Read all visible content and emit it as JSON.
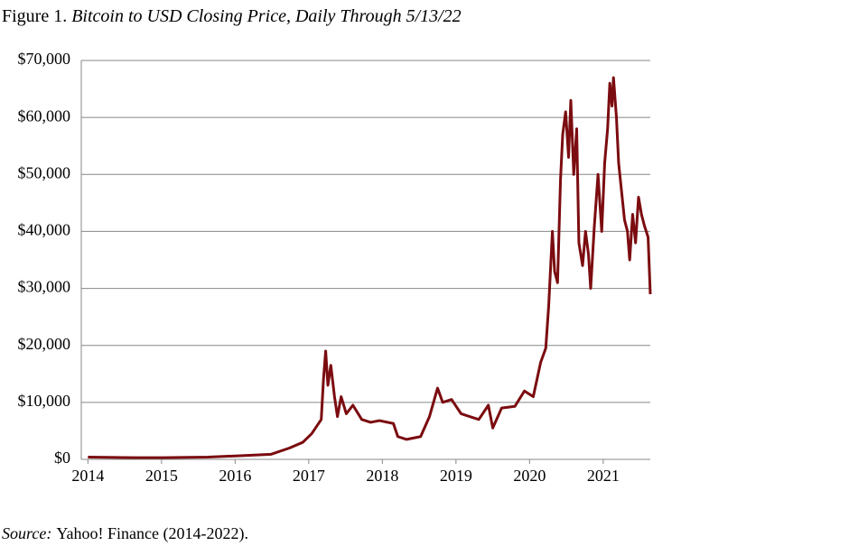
{
  "chart_data": {
    "type": "line",
    "figure_label": "Figure 1.",
    "title": "Bitcoin to USD Closing Price, Daily Through 5/13/22",
    "source_label": "Source:",
    "source": "Yahoo! Finance (2014-2022).",
    "xlim": [
      2013.91,
      2021.64
    ],
    "xticks": [
      2014,
      2015,
      2016,
      2017,
      2018,
      2019,
      2020,
      2021
    ],
    "ylim": [
      0,
      70000
    ],
    "yticks": [
      {
        "value": 0,
        "label": "$0"
      },
      {
        "value": 10000,
        "label": "$10,000"
      },
      {
        "value": 20000,
        "label": "$20,000"
      },
      {
        "value": 30000,
        "label": "$30,000"
      },
      {
        "value": 40000,
        "label": "$40,000"
      },
      {
        "value": 50000,
        "label": "$50,000"
      },
      {
        "value": 60000,
        "label": "$60,000"
      },
      {
        "value": 70000,
        "label": "$70,000"
      }
    ],
    "grid": true,
    "x": [
      2014.0,
      2014.65,
      2015.0,
      2015.63,
      2016.0,
      2016.49,
      2016.74,
      2016.92,
      2017.04,
      2017.17,
      2017.2,
      2017.23,
      2017.26,
      2017.3,
      2017.35,
      2017.39,
      2017.44,
      2017.51,
      2017.6,
      2017.72,
      2017.84,
      2017.96,
      2018.15,
      2018.21,
      2018.33,
      2018.52,
      2018.64,
      2018.75,
      2018.82,
      2018.94,
      2019.07,
      2019.19,
      2019.31,
      2019.44,
      2019.5,
      2019.62,
      2019.8,
      2019.93,
      2020.05,
      2020.15,
      2020.22,
      2020.26,
      2020.31,
      2020.34,
      2020.38,
      2020.42,
      2020.45,
      2020.49,
      2020.53,
      2020.56,
      2020.6,
      2020.64,
      2020.67,
      2020.72,
      2020.76,
      2020.8,
      2020.83,
      2020.88,
      2020.93,
      2020.98,
      2021.02,
      2021.06,
      2021.09,
      2021.12,
      2021.14,
      2021.18,
      2021.21,
      2021.25,
      2021.29,
      2021.33,
      2021.36,
      2021.4,
      2021.44,
      2021.48,
      2021.52,
      2021.56,
      2021.61,
      2021.64
    ],
    "series": [
      {
        "name": "Bitcoin",
        "color": "#7b0c10",
        "values": [
          400,
          300,
          300,
          400,
          600,
          900,
          2000,
          3000,
          4500,
          7000,
          14000,
          19000,
          13000,
          16500,
          11000,
          7500,
          11000,
          8000,
          9500,
          7000,
          6500,
          6800,
          6300,
          4000,
          3500,
          4000,
          7500,
          12500,
          10000,
          10500,
          8000,
          7500,
          7000,
          9500,
          5500,
          9000,
          9300,
          12000,
          11000,
          17000,
          19500,
          27000,
          40000,
          33000,
          31000,
          49000,
          57000,
          61000,
          53000,
          63000,
          50000,
          58000,
          38000,
          34000,
          40000,
          36000,
          30000,
          41000,
          50000,
          40000,
          52000,
          58000,
          66000,
          62000,
          67000,
          60000,
          52000,
          47000,
          42000,
          40000,
          35000,
          43000,
          38000,
          46000,
          43000,
          41000,
          39000,
          29000
        ]
      }
    ]
  }
}
